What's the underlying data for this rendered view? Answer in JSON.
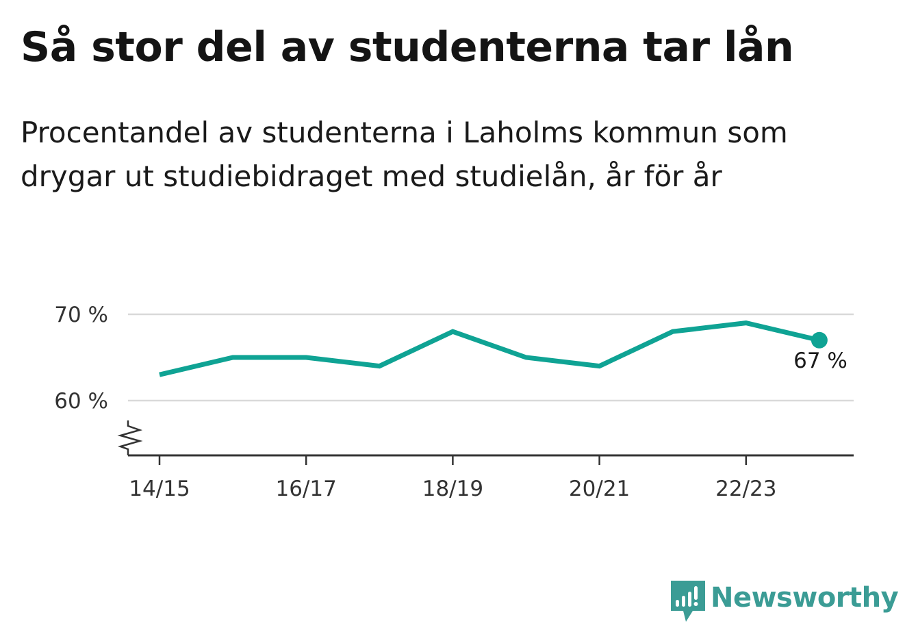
{
  "title": "Så stor del av studenterna tar lån",
  "subtitle": "Procentandel av studenterna i Laholms kommun som drygar ut studiebidraget med studielån, år för år",
  "brand": {
    "name": "Newsworthy",
    "icon": "newsworthy-logo-icon",
    "color": "#3b9c95"
  },
  "chart_data": {
    "type": "line",
    "x": [
      "14/15",
      "15/16",
      "16/17",
      "17/18",
      "18/19",
      "19/20",
      "20/21",
      "21/22",
      "22/23",
      "23/24"
    ],
    "values": [
      63,
      65,
      65,
      64,
      68,
      65,
      64,
      68,
      69,
      67
    ],
    "x_ticks": [
      "14/15",
      "16/17",
      "18/19",
      "20/21",
      "22/23"
    ],
    "y_ticks": [
      60,
      70
    ],
    "y_tick_labels": [
      "60 %",
      "70 %"
    ],
    "last_value_label": "67 %",
    "line_color": "#0fa394",
    "grid": true,
    "axis_break": true
  }
}
